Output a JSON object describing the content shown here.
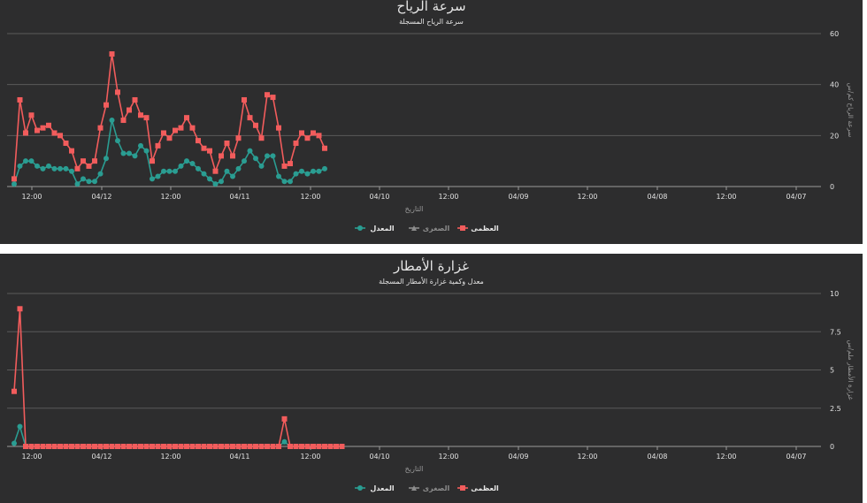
{
  "chart_data": [
    {
      "type": "line",
      "title": "سرعة الرياح",
      "subtitle": "سرعة الرياح المسجلة",
      "xlabel": "التاريخ",
      "ylabel": "سرعة الرياح كم/س",
      "y_ticks": [
        "0",
        "20",
        "40",
        "60"
      ],
      "ylim": [
        0,
        60
      ],
      "x_ticks": [
        "12:00",
        "04/12",
        "12:00",
        "04/11",
        "12:00",
        "04/10",
        "12:00",
        "04/09",
        "12:00",
        "04/08",
        "12:00",
        "04/07"
      ],
      "grid": true,
      "legend_position": "bottom",
      "legend": [
        "العظمى",
        "الصغرى",
        "المعدل"
      ],
      "series": [
        {
          "name": "العظمى",
          "color": "#f25c5c",
          "marker": "square",
          "values": [
            3,
            34,
            21,
            28,
            22,
            23,
            24,
            21,
            20,
            17,
            14,
            7,
            10,
            8,
            10,
            23,
            32,
            52,
            37,
            26,
            30,
            34,
            28,
            27,
            10,
            16,
            21,
            19,
            22,
            23,
            27,
            23,
            18,
            15,
            14,
            6,
            12,
            17,
            12,
            19,
            34,
            27,
            24,
            19,
            36,
            35,
            23,
            8,
            9,
            17,
            21,
            19,
            21,
            20,
            15
          ]
        },
        {
          "name": "الصغرى",
          "color": "#8c8c8c",
          "marker": "line",
          "values": []
        },
        {
          "name": "المعدل",
          "color": "#2a9d92",
          "marker": "circle",
          "values": [
            1,
            8,
            10,
            10,
            8,
            7,
            8,
            7,
            7,
            7,
            6,
            1,
            3,
            2,
            2,
            5,
            11,
            26,
            18,
            13,
            13,
            12,
            16,
            14,
            3,
            4,
            6,
            6,
            6,
            8,
            10,
            9,
            7,
            5,
            3,
            1,
            2,
            6,
            4,
            7,
            10,
            14,
            11,
            8,
            12,
            12,
            4,
            2,
            2,
            5,
            6,
            5,
            6,
            6,
            7
          ]
        }
      ]
    },
    {
      "type": "line",
      "title": "غزارة الأمطار",
      "subtitle": "معدل وكمية غزارة الأمطار المسجلة",
      "xlabel": "التاريخ",
      "ylabel": "غزارة الأمطار ملم/س",
      "y_ticks": [
        "0",
        "2.5",
        "5",
        "7.5",
        "10"
      ],
      "ylim": [
        0,
        10
      ],
      "x_ticks": [
        "12:00",
        "04/12",
        "12:00",
        "04/11",
        "12:00",
        "04/10",
        "12:00",
        "04/09",
        "12:00",
        "04/08",
        "12:00",
        "04/07"
      ],
      "grid": true,
      "legend_position": "bottom",
      "legend": [
        "العظمى",
        "الصغرى",
        "المعدل"
      ],
      "series": [
        {
          "name": "العظمى",
          "color": "#f25c5c",
          "marker": "square",
          "values": [
            3.6,
            9,
            0,
            0,
            0,
            0,
            0,
            0,
            0,
            0,
            0,
            0,
            0,
            0,
            0,
            0,
            0,
            0,
            0,
            0,
            0,
            0,
            0,
            0,
            0,
            0,
            0,
            0,
            0,
            0,
            0,
            0,
            0,
            0,
            0,
            0,
            0,
            0,
            0,
            0,
            0,
            0,
            0,
            0,
            0,
            0,
            0,
            1.8,
            0,
            0,
            0,
            0,
            0,
            0,
            0,
            0,
            0,
            0
          ]
        },
        {
          "name": "الصغرى",
          "color": "#8c8c8c",
          "marker": "line",
          "values": []
        },
        {
          "name": "المعدل",
          "color": "#2a9d92",
          "marker": "circle",
          "values": [
            0.2,
            1.3,
            0,
            0,
            0,
            0,
            0,
            0,
            0,
            0,
            0,
            0,
            0,
            0,
            0,
            0,
            0,
            0,
            0,
            0,
            0,
            0,
            0,
            0,
            0,
            0,
            0,
            0,
            0,
            0,
            0,
            0,
            0,
            0,
            0,
            0,
            0,
            0,
            0,
            0,
            0,
            0,
            0,
            0,
            0,
            0,
            0,
            0.3,
            0,
            0,
            0,
            0,
            0,
            0,
            0,
            0,
            0,
            0
          ]
        }
      ]
    }
  ]
}
